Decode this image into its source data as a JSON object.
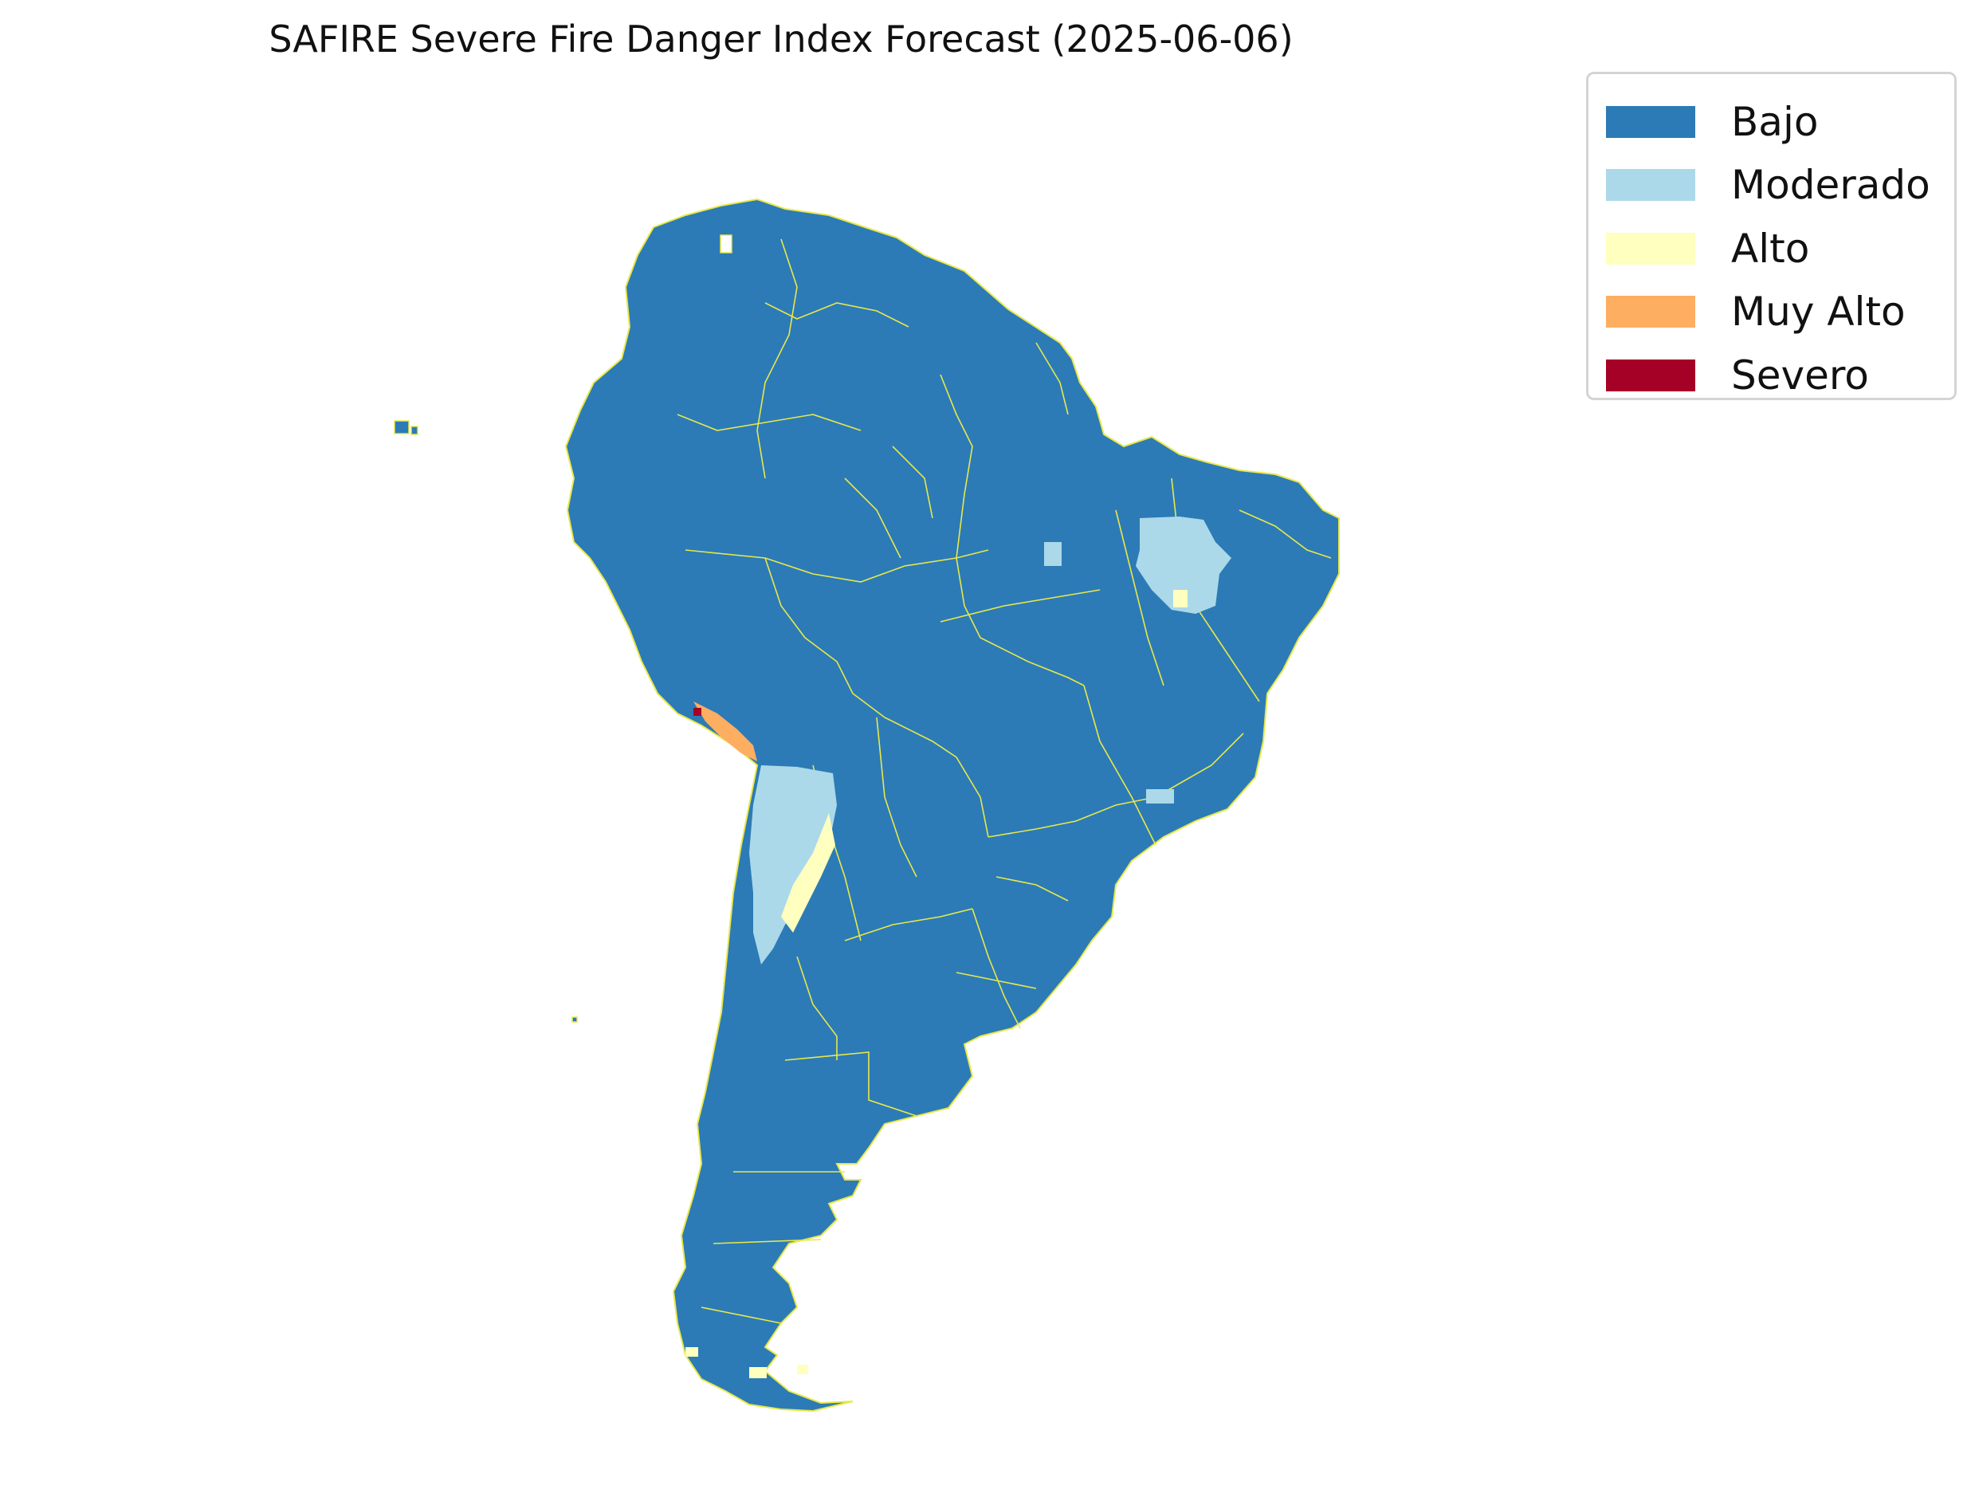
{
  "title": "SAFIRE Severe Fire Danger Index Forecast (2025-06-06)",
  "legend": {
    "items": [
      {
        "label": "Bajo",
        "color": "#2c7bb6"
      },
      {
        "label": "Moderado",
        "color": "#abd9e9"
      },
      {
        "label": "Alto",
        "color": "#ffffbf"
      },
      {
        "label": "Muy Alto",
        "color": "#fdae61"
      },
      {
        "label": "Severo",
        "color": "#a50026"
      }
    ]
  },
  "map": {
    "region": "South America",
    "boundary_color": "#e8e84a",
    "background_category": "Bajo",
    "highlighted_areas": [
      {
        "area": "northeast Brazil interior",
        "category": "Moderado"
      },
      {
        "area": "eastern Brazil patch",
        "category": "Moderado"
      },
      {
        "area": "central Andes / northern Argentina",
        "category": "Moderado"
      },
      {
        "area": "central Andes ridge",
        "category": "Alto"
      },
      {
        "area": "southern Peru coast",
        "category": "Muy Alto"
      },
      {
        "area": "southern Peru coast point",
        "category": "Severo"
      },
      {
        "area": "southern Patagonia fragments",
        "category": "Alto"
      }
    ]
  }
}
